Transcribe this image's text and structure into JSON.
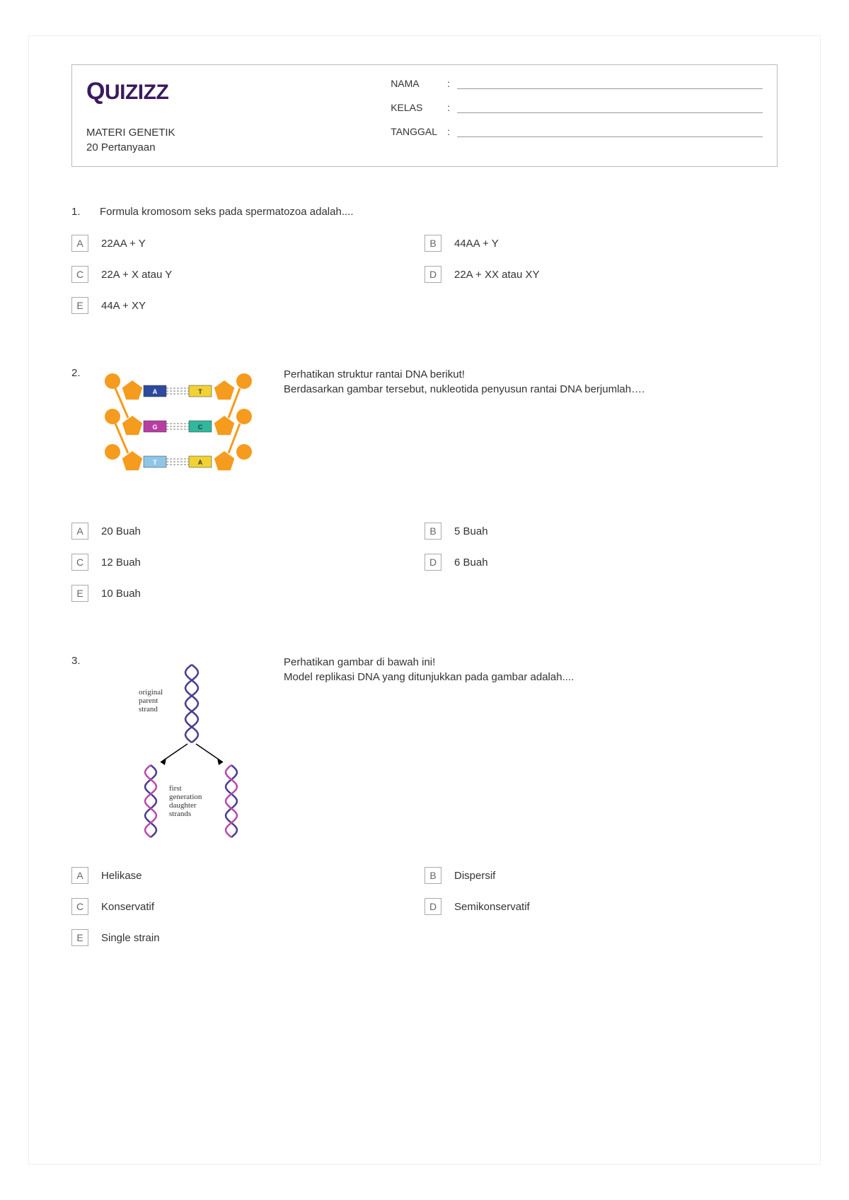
{
  "header": {
    "logo_text": "QUIZIZZ",
    "quiz_title": "MATERI GENETIK",
    "question_count": "20 Pertanyaan",
    "fields": {
      "name_label": "NAMA",
      "class_label": "KELAS",
      "date_label": "TANGGAL"
    }
  },
  "colors": {
    "logo": "#3a1a5e",
    "border": "#bbbbbb",
    "opt_border": "#aaaaaa",
    "text": "#333333"
  },
  "questions": [
    {
      "number": "1.",
      "text": "Formula kromosom seks pada spermatozoa adalah....",
      "has_image": false,
      "options": [
        {
          "letter": "A",
          "text": "22AA + Y"
        },
        {
          "letter": "B",
          "text": "44AA + Y"
        },
        {
          "letter": "C",
          "text": "22A + X atau Y"
        },
        {
          "letter": "D",
          "text": "22A + XX atau XY"
        },
        {
          "letter": "E",
          "text": "44A + XY"
        }
      ]
    },
    {
      "number": "2.",
      "text_lines": [
        "Perhatikan struktur rantai DNA berikut!",
        "Berdasarkan gambar tersebut, nukleotida penyusun rantai DNA berjumlah…."
      ],
      "has_image": true,
      "image_type": "dna_chain",
      "dna": {
        "phosphate_color": "#f59b1d",
        "sugar_color": "#f59b1d",
        "pairs": [
          {
            "left": "A",
            "left_color": "#2d4a9e",
            "right": "T",
            "right_color": "#f2d232"
          },
          {
            "left": "G",
            "left_color": "#b83da3",
            "right": "C",
            "right_color": "#2fb89c"
          },
          {
            "left": "T",
            "left_color": "#8fc6e8",
            "right": "A",
            "right_color": "#f2d232"
          }
        ],
        "hbond_color": "#777777"
      },
      "options": [
        {
          "letter": "A",
          "text": "20 Buah"
        },
        {
          "letter": "B",
          "text": "5 Buah"
        },
        {
          "letter": "C",
          "text": "12 Buah"
        },
        {
          "letter": "D",
          "text": "6 Buah"
        },
        {
          "letter": "E",
          "text": "10 Buah"
        }
      ]
    },
    {
      "number": "3.",
      "text_lines": [
        "Perhatikan gambar di bawah ini!",
        "Model replikasi DNA yang ditunjukkan pada gambar adalah...."
      ],
      "has_image": true,
      "image_type": "replication",
      "rep": {
        "parent_color": "#4a3b8f",
        "daughter_color": "#b84aa8",
        "label1_l1": "original",
        "label1_l2": "parent",
        "label1_l3": "strand",
        "label2_l1": "first",
        "label2_l2": "generation",
        "label2_l3": "daughter",
        "label2_l4": "strands"
      },
      "options": [
        {
          "letter": "A",
          "text": "Helikase"
        },
        {
          "letter": "B",
          "text": "Dispersif"
        },
        {
          "letter": "C",
          "text": "Konservatif"
        },
        {
          "letter": "D",
          "text": "Semikonservatif"
        },
        {
          "letter": "E",
          "text": "Single strain"
        }
      ]
    }
  ]
}
